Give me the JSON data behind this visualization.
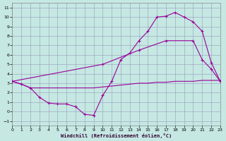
{
  "xlabel": "Windchill (Refroidissement éolien,°C)",
  "bg_color": "#c5e8e3",
  "grid_color": "#9999bb",
  "line_color": "#990099",
  "xlim": [
    0,
    23
  ],
  "ylim": [
    -1.5,
    11.5
  ],
  "xticks": [
    0,
    1,
    2,
    3,
    4,
    5,
    6,
    7,
    8,
    9,
    10,
    11,
    12,
    13,
    14,
    15,
    16,
    17,
    18,
    19,
    20,
    21,
    22,
    23
  ],
  "yticks": [
    -1,
    0,
    1,
    2,
    3,
    4,
    5,
    6,
    7,
    8,
    9,
    10,
    11
  ],
  "line1_x": [
    0,
    1,
    2,
    3,
    4,
    5,
    6,
    7,
    8,
    9,
    10,
    11,
    12,
    13,
    14,
    15,
    16,
    17,
    18,
    19,
    20,
    21,
    22,
    23
  ],
  "line1_y": [
    3.2,
    2.9,
    2.5,
    1.5,
    0.9,
    0.8,
    0.8,
    0.5,
    -0.3,
    -0.4,
    1.7,
    3.2,
    5.5,
    6.2,
    7.5,
    8.5,
    10.0,
    10.1,
    10.5,
    10.0,
    9.5,
    8.5,
    5.2,
    3.2
  ],
  "line2_x": [
    0,
    1,
    2,
    3,
    4,
    5,
    6,
    7,
    8,
    9,
    10,
    11,
    12,
    13,
    14,
    15,
    16,
    17,
    18,
    19,
    20,
    21,
    22,
    23
  ],
  "line2_y": [
    3.2,
    2.9,
    2.5,
    2.5,
    2.5,
    2.5,
    2.5,
    2.5,
    2.5,
    2.5,
    2.6,
    2.7,
    2.8,
    2.9,
    3.0,
    3.0,
    3.1,
    3.1,
    3.2,
    3.2,
    3.2,
    3.3,
    3.3,
    3.3
  ],
  "line3_x": [
    0,
    10,
    14,
    17,
    20,
    21,
    22,
    23
  ],
  "line3_y": [
    3.2,
    5.0,
    6.5,
    7.5,
    7.5,
    5.5,
    4.5,
    3.2
  ],
  "marker": "+"
}
